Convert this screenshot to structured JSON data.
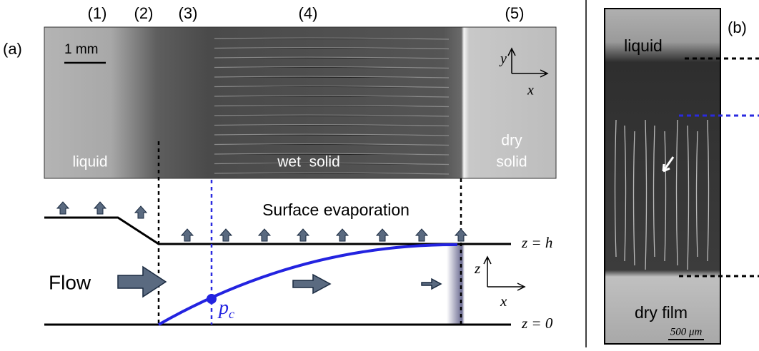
{
  "panel_a": {
    "label": "(a)",
    "regions": [
      "(1)",
      "(2)",
      "(3)",
      "(4)",
      "(5)"
    ],
    "scale_bar": "1 mm",
    "image_axes": {
      "y": "y",
      "x": "x"
    },
    "image_labels": {
      "liquid": "liquid",
      "wet_solid": "wet  solid",
      "dry_line1": "dry",
      "dry_line2": "solid"
    },
    "diagram": {
      "evaporation": "Surface evaporation",
      "top": "z = h",
      "bottom": "z = 0",
      "flow": "Flow",
      "axes": {
        "z": "z",
        "x": "x"
      },
      "pc_symbol": "p",
      "pc_subscript": "c"
    }
  },
  "panel_b": {
    "label": "(b)",
    "top_label": "liquid",
    "bottom_label": "dry film",
    "scale_bar": "500 μm"
  }
}
